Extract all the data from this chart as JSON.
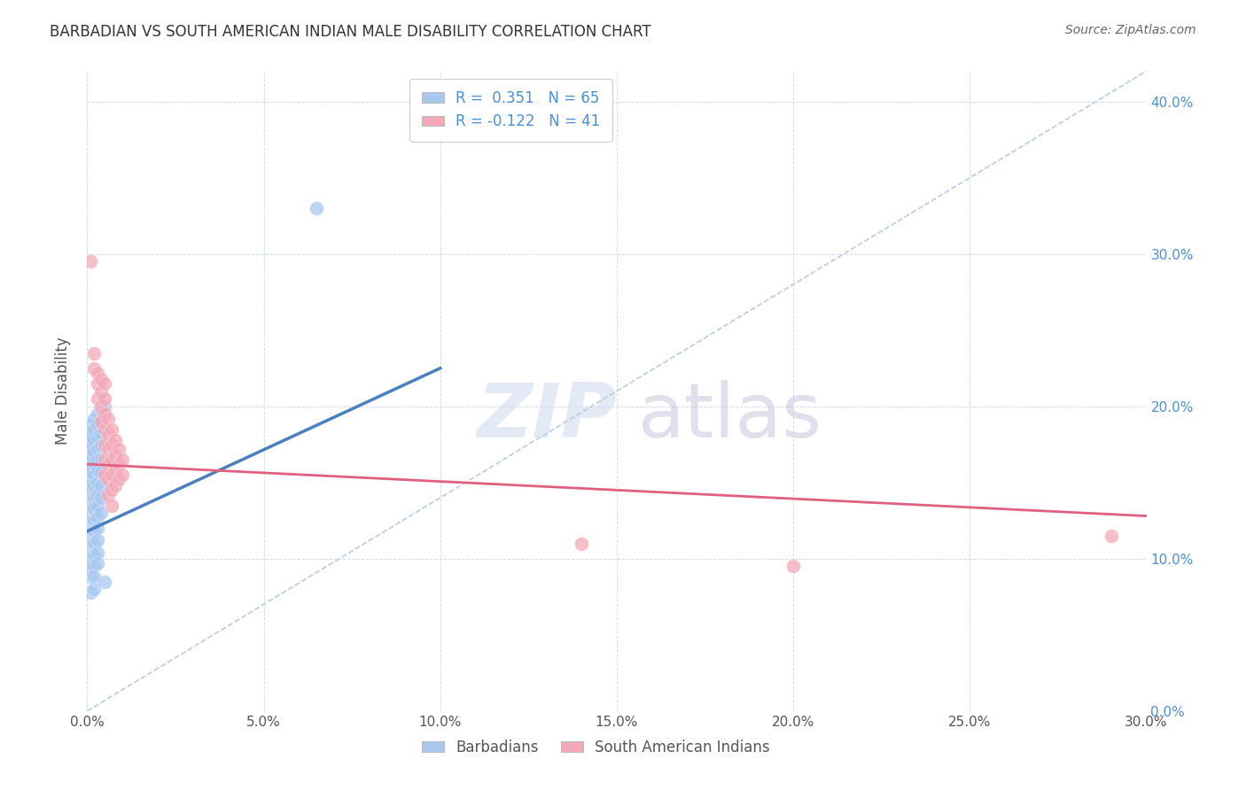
{
  "title": "BARBADIAN VS SOUTH AMERICAN INDIAN MALE DISABILITY CORRELATION CHART",
  "source": "Source: ZipAtlas.com",
  "ylabel_label": "Male Disability",
  "xlim": [
    0.0,
    0.3
  ],
  "ylim": [
    0.0,
    0.42
  ],
  "blue_color": "#a8c8f0",
  "pink_color": "#f4a8b8",
  "blue_line_color": "#4a7fc0",
  "pink_line_color": "#e06080",
  "trend_line_color": "#b8cce4",
  "blue_line": [
    [
      0.0,
      0.118
    ],
    [
      0.1,
      0.225
    ]
  ],
  "pink_line": [
    [
      0.0,
      0.162
    ],
    [
      0.3,
      0.128
    ]
  ],
  "diagonal_line": [
    [
      0.0,
      0.0
    ],
    [
      0.3,
      0.42
    ]
  ],
  "barbadians": [
    [
      0.0005,
      0.155
    ],
    [
      0.0005,
      0.148
    ],
    [
      0.0007,
      0.165
    ],
    [
      0.0007,
      0.158
    ],
    [
      0.0008,
      0.172
    ],
    [
      0.0009,
      0.178
    ],
    [
      0.001,
      0.182
    ],
    [
      0.001,
      0.175
    ],
    [
      0.001,
      0.168
    ],
    [
      0.001,
      0.158
    ],
    [
      0.001,
      0.148
    ],
    [
      0.001,
      0.14
    ],
    [
      0.001,
      0.133
    ],
    [
      0.001,
      0.125
    ],
    [
      0.001,
      0.118
    ],
    [
      0.001,
      0.11
    ],
    [
      0.001,
      0.102
    ],
    [
      0.001,
      0.095
    ],
    [
      0.001,
      0.088
    ],
    [
      0.001,
      0.078
    ],
    [
      0.0015,
      0.188
    ],
    [
      0.0015,
      0.18
    ],
    [
      0.0015,
      0.172
    ],
    [
      0.002,
      0.192
    ],
    [
      0.002,
      0.185
    ],
    [
      0.002,
      0.178
    ],
    [
      0.002,
      0.17
    ],
    [
      0.002,
      0.163
    ],
    [
      0.002,
      0.155
    ],
    [
      0.002,
      0.148
    ],
    [
      0.002,
      0.14
    ],
    [
      0.002,
      0.133
    ],
    [
      0.002,
      0.125
    ],
    [
      0.002,
      0.118
    ],
    [
      0.002,
      0.11
    ],
    [
      0.002,
      0.102
    ],
    [
      0.002,
      0.095
    ],
    [
      0.002,
      0.088
    ],
    [
      0.002,
      0.08
    ],
    [
      0.003,
      0.195
    ],
    [
      0.003,
      0.188
    ],
    [
      0.003,
      0.18
    ],
    [
      0.003,
      0.172
    ],
    [
      0.003,
      0.165
    ],
    [
      0.003,
      0.158
    ],
    [
      0.003,
      0.15
    ],
    [
      0.003,
      0.142
    ],
    [
      0.003,
      0.135
    ],
    [
      0.003,
      0.127
    ],
    [
      0.003,
      0.12
    ],
    [
      0.003,
      0.112
    ],
    [
      0.003,
      0.104
    ],
    [
      0.003,
      0.097
    ],
    [
      0.004,
      0.198
    ],
    [
      0.004,
      0.19
    ],
    [
      0.004,
      0.182
    ],
    [
      0.004,
      0.174
    ],
    [
      0.004,
      0.165
    ],
    [
      0.004,
      0.157
    ],
    [
      0.004,
      0.148
    ],
    [
      0.004,
      0.14
    ],
    [
      0.004,
      0.13
    ],
    [
      0.005,
      0.2
    ],
    [
      0.005,
      0.085
    ],
    [
      0.065,
      0.33
    ]
  ],
  "south_american": [
    [
      0.001,
      0.295
    ],
    [
      0.002,
      0.235
    ],
    [
      0.002,
      0.225
    ],
    [
      0.003,
      0.222
    ],
    [
      0.003,
      0.215
    ],
    [
      0.003,
      0.205
    ],
    [
      0.004,
      0.218
    ],
    [
      0.004,
      0.21
    ],
    [
      0.004,
      0.2
    ],
    [
      0.004,
      0.19
    ],
    [
      0.005,
      0.215
    ],
    [
      0.005,
      0.205
    ],
    [
      0.005,
      0.195
    ],
    [
      0.005,
      0.185
    ],
    [
      0.005,
      0.175
    ],
    [
      0.005,
      0.165
    ],
    [
      0.005,
      0.155
    ],
    [
      0.006,
      0.192
    ],
    [
      0.006,
      0.182
    ],
    [
      0.006,
      0.172
    ],
    [
      0.006,
      0.162
    ],
    [
      0.006,
      0.152
    ],
    [
      0.006,
      0.142
    ],
    [
      0.007,
      0.185
    ],
    [
      0.007,
      0.175
    ],
    [
      0.007,
      0.165
    ],
    [
      0.007,
      0.155
    ],
    [
      0.007,
      0.145
    ],
    [
      0.007,
      0.135
    ],
    [
      0.008,
      0.178
    ],
    [
      0.008,
      0.168
    ],
    [
      0.008,
      0.158
    ],
    [
      0.008,
      0.148
    ],
    [
      0.009,
      0.172
    ],
    [
      0.009,
      0.162
    ],
    [
      0.009,
      0.152
    ],
    [
      0.01,
      0.165
    ],
    [
      0.01,
      0.155
    ],
    [
      0.14,
      0.11
    ],
    [
      0.2,
      0.095
    ],
    [
      0.29,
      0.115
    ]
  ]
}
